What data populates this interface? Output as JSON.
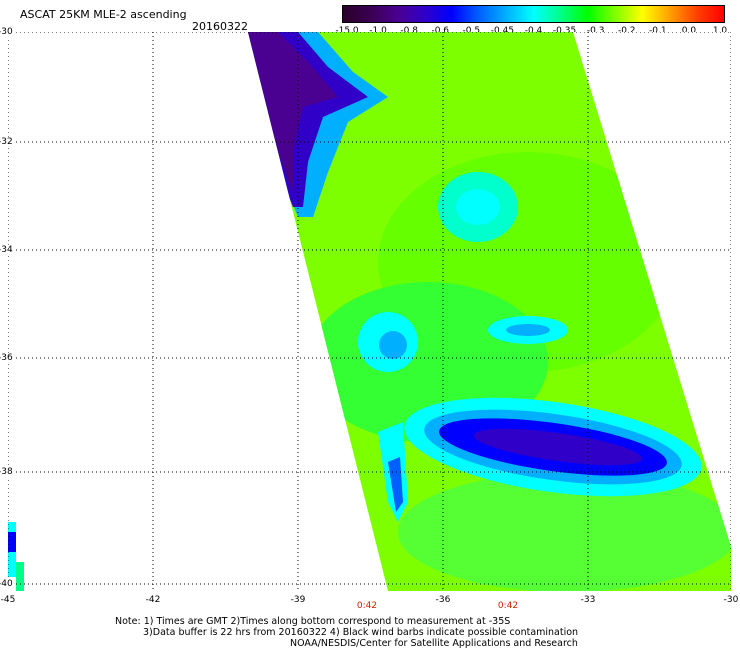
{
  "title": "ASCAT 25KM MLE-2 ascending",
  "date": "20160322",
  "colorbar": {
    "labels": [
      "-15.0",
      "-1.0",
      "-0.8",
      "-0.6",
      "-0.5",
      "-0.45",
      "-0.4",
      "-0.35",
      "-0.3",
      "-0.2",
      "-0.1",
      "0.0",
      "1.0"
    ],
    "colors": [
      "#2a002a",
      "#3a0050",
      "#4a0090",
      "#3000c8",
      "#0000ff",
      "#0060ff",
      "#00b0ff",
      "#00ffff",
      "#00ff88",
      "#00ff00",
      "#80ff00",
      "#ffff00",
      "#ffa000",
      "#ff4000",
      "#ff0000"
    ]
  },
  "map": {
    "lat_labels": [
      "-30",
      "-32",
      "-34",
      "-36",
      "-38",
      "-40"
    ],
    "lon_labels": [
      "-45",
      "-42",
      "-39",
      "-36",
      "-33",
      "-30"
    ],
    "time_labels": [
      "0:42",
      "0:42"
    ]
  },
  "notes": {
    "line1": "Note: 1) Times are GMT 2)Times along bottom correspond to measurement at -35S",
    "line2": "3)Data buffer is 22 hrs from 20160322 4) Black wind barbs indicate possible contamination",
    "line3": "NOAA/NESDIS/Center for Satellite Applications and Research"
  }
}
